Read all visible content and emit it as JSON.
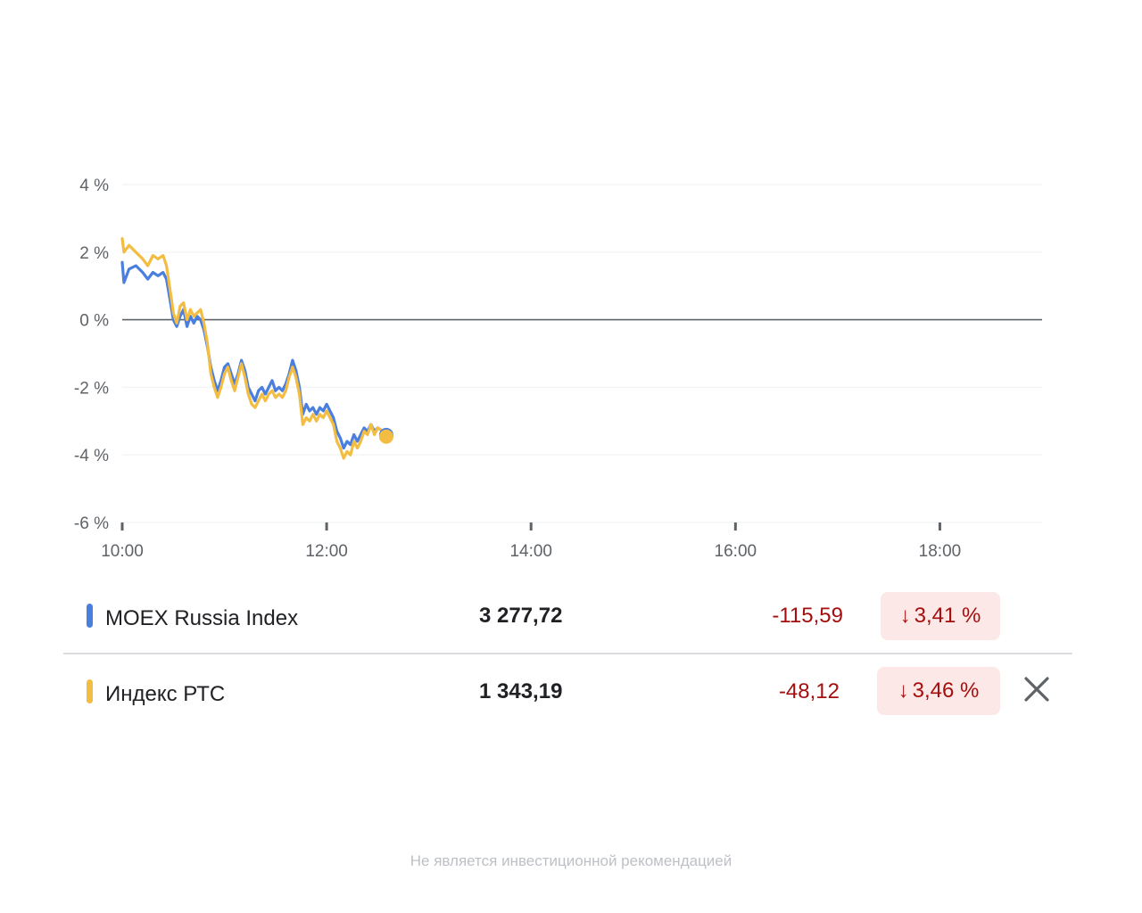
{
  "chart_data": {
    "type": "line",
    "x_ticks": [
      "10:00",
      "12:00",
      "14:00",
      "16:00",
      "18:00"
    ],
    "y_ticks": [
      "4 %",
      "2 %",
      "0 %",
      "-2 %",
      "-4 %",
      "-6 %"
    ],
    "ylim": [
      -6,
      4
    ],
    "xlim": [
      "10:00",
      "19:00"
    ],
    "baseline": 0,
    "grid": true,
    "series": [
      {
        "name": "MOEX Russia Index",
        "color": "#4a7fe0",
        "points": [
          [
            "10:00",
            1.7
          ],
          [
            "10:01",
            1.1
          ],
          [
            "10:04",
            1.5
          ],
          [
            "10:08",
            1.6
          ],
          [
            "10:12",
            1.4
          ],
          [
            "10:15",
            1.2
          ],
          [
            "10:18",
            1.4
          ],
          [
            "10:21",
            1.3
          ],
          [
            "10:24",
            1.4
          ],
          [
            "10:26",
            1.2
          ],
          [
            "10:28",
            0.6
          ],
          [
            "10:30",
            0.0
          ],
          [
            "10:32",
            -0.2
          ],
          [
            "10:34",
            0.1
          ],
          [
            "10:36",
            0.3
          ],
          [
            "10:38",
            -0.2
          ],
          [
            "10:40",
            0.1
          ],
          [
            "10:42",
            -0.1
          ],
          [
            "10:44",
            0.1
          ],
          [
            "10:46",
            0.0
          ],
          [
            "10:48",
            -0.3
          ],
          [
            "10:50",
            -0.8
          ],
          [
            "10:52",
            -1.4
          ],
          [
            "10:54",
            -1.8
          ],
          [
            "10:56",
            -2.1
          ],
          [
            "10:58",
            -1.8
          ],
          [
            "11:00",
            -1.4
          ],
          [
            "11:02",
            -1.3
          ],
          [
            "11:04",
            -1.6
          ],
          [
            "11:06",
            -1.9
          ],
          [
            "11:08",
            -1.6
          ],
          [
            "11:10",
            -1.2
          ],
          [
            "11:12",
            -1.5
          ],
          [
            "11:14",
            -2.0
          ],
          [
            "11:16",
            -2.2
          ],
          [
            "11:18",
            -2.4
          ],
          [
            "11:20",
            -2.1
          ],
          [
            "11:22",
            -2.0
          ],
          [
            "11:24",
            -2.2
          ],
          [
            "11:26",
            -2.0
          ],
          [
            "11:28",
            -1.8
          ],
          [
            "11:30",
            -2.1
          ],
          [
            "11:32",
            -2.0
          ],
          [
            "11:34",
            -2.1
          ],
          [
            "11:36",
            -1.9
          ],
          [
            "11:38",
            -1.6
          ],
          [
            "11:40",
            -1.2
          ],
          [
            "11:42",
            -1.5
          ],
          [
            "11:44",
            -2.0
          ],
          [
            "11:46",
            -2.8
          ],
          [
            "11:48",
            -2.5
          ],
          [
            "11:50",
            -2.7
          ],
          [
            "11:52",
            -2.6
          ],
          [
            "11:54",
            -2.8
          ],
          [
            "11:56",
            -2.6
          ],
          [
            "11:58",
            -2.7
          ],
          [
            "12:00",
            -2.5
          ],
          [
            "12:02",
            -2.7
          ],
          [
            "12:04",
            -2.9
          ],
          [
            "12:06",
            -3.3
          ],
          [
            "12:08",
            -3.5
          ],
          [
            "12:10",
            -3.8
          ],
          [
            "12:12",
            -3.6
          ],
          [
            "12:14",
            -3.7
          ],
          [
            "12:16",
            -3.4
          ],
          [
            "12:18",
            -3.6
          ],
          [
            "12:20",
            -3.4
          ],
          [
            "12:22",
            -3.2
          ],
          [
            "12:24",
            -3.3
          ],
          [
            "12:26",
            -3.1
          ],
          [
            "12:28",
            -3.3
          ],
          [
            "12:30",
            -3.2
          ],
          [
            "12:33",
            -3.3
          ],
          [
            "12:35",
            -3.41
          ]
        ]
      },
      {
        "name": "Индекс РТС",
        "color": "#f2bd42",
        "points": [
          [
            "10:00",
            2.4
          ],
          [
            "10:01",
            2.0
          ],
          [
            "10:04",
            2.2
          ],
          [
            "10:08",
            2.0
          ],
          [
            "10:12",
            1.8
          ],
          [
            "10:15",
            1.6
          ],
          [
            "10:18",
            1.9
          ],
          [
            "10:21",
            1.8
          ],
          [
            "10:24",
            1.9
          ],
          [
            "10:26",
            1.6
          ],
          [
            "10:28",
            0.9
          ],
          [
            "10:30",
            0.2
          ],
          [
            "10:32",
            -0.1
          ],
          [
            "10:34",
            0.4
          ],
          [
            "10:36",
            0.5
          ],
          [
            "10:38",
            0.0
          ],
          [
            "10:40",
            0.3
          ],
          [
            "10:42",
            0.1
          ],
          [
            "10:44",
            0.2
          ],
          [
            "10:46",
            0.3
          ],
          [
            "10:48",
            -0.1
          ],
          [
            "10:50",
            -0.7
          ],
          [
            "10:52",
            -1.6
          ],
          [
            "10:54",
            -2.0
          ],
          [
            "10:56",
            -2.3
          ],
          [
            "10:58",
            -2.0
          ],
          [
            "11:00",
            -1.6
          ],
          [
            "11:02",
            -1.4
          ],
          [
            "11:04",
            -1.8
          ],
          [
            "11:06",
            -2.1
          ],
          [
            "11:08",
            -1.7
          ],
          [
            "11:10",
            -1.3
          ],
          [
            "11:12",
            -1.7
          ],
          [
            "11:14",
            -2.2
          ],
          [
            "11:16",
            -2.5
          ],
          [
            "11:18",
            -2.6
          ],
          [
            "11:20",
            -2.4
          ],
          [
            "11:22",
            -2.2
          ],
          [
            "11:24",
            -2.4
          ],
          [
            "11:26",
            -2.2
          ],
          [
            "11:28",
            -2.1
          ],
          [
            "11:30",
            -2.3
          ],
          [
            "11:32",
            -2.2
          ],
          [
            "11:34",
            -2.3
          ],
          [
            "11:36",
            -2.1
          ],
          [
            "11:38",
            -1.7
          ],
          [
            "11:40",
            -1.4
          ],
          [
            "11:42",
            -1.7
          ],
          [
            "11:44",
            -2.2
          ],
          [
            "11:46",
            -3.1
          ],
          [
            "11:48",
            -2.9
          ],
          [
            "11:50",
            -3.0
          ],
          [
            "11:52",
            -2.8
          ],
          [
            "11:54",
            -3.0
          ],
          [
            "11:56",
            -2.8
          ],
          [
            "11:58",
            -2.9
          ],
          [
            "12:00",
            -2.7
          ],
          [
            "12:02",
            -2.9
          ],
          [
            "12:04",
            -3.1
          ],
          [
            "12:06",
            -3.6
          ],
          [
            "12:08",
            -3.8
          ],
          [
            "12:10",
            -4.1
          ],
          [
            "12:12",
            -3.9
          ],
          [
            "12:14",
            -4.0
          ],
          [
            "12:16",
            -3.6
          ],
          [
            "12:18",
            -3.8
          ],
          [
            "12:20",
            -3.6
          ],
          [
            "12:22",
            -3.3
          ],
          [
            "12:24",
            -3.4
          ],
          [
            "12:26",
            -3.1
          ],
          [
            "12:28",
            -3.4
          ],
          [
            "12:30",
            -3.2
          ],
          [
            "12:33",
            -3.3
          ],
          [
            "12:35",
            -3.46
          ]
        ]
      }
    ]
  },
  "rows": [
    {
      "name": "MOEX Russia Index",
      "color": "#4a7fe0",
      "value": "3 277,72",
      "change": "-115,59",
      "percent": "3,41 %",
      "arrow": "↓"
    },
    {
      "name": "Индекс РТС",
      "color": "#f2bd42",
      "value": "1 343,19",
      "change": "-48,12",
      "percent": "3,46 %",
      "arrow": "↓"
    }
  ],
  "footer": "Не является инвестиционной рекомендацией"
}
